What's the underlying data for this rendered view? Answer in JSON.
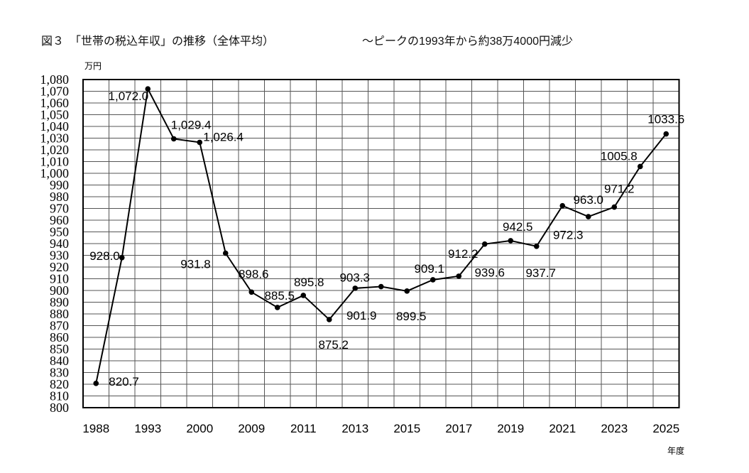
{
  "chart_data": {
    "type": "line",
    "title": "図３　「世帯の税込年収」の推移（全体平均）",
    "subtitle": "～ピークの1993年から約38万4000円減少",
    "ylabel": "万円",
    "xlabel": "年度",
    "ylim": [
      800,
      1080
    ],
    "ytick_step": 10,
    "ytick_labels": [
      "800",
      "810",
      "820",
      "830",
      "840",
      "850",
      "860",
      "870",
      "880",
      "890",
      "900",
      "910",
      "920",
      "930",
      "940",
      "950",
      "960",
      "970",
      "980",
      "990",
      "1,000",
      "1,010",
      "1,020",
      "1,030",
      "1,040",
      "1,050",
      "1,060",
      "1,070",
      "1,080"
    ],
    "grid": true,
    "categories": [
      "1988",
      "",
      "1993",
      "",
      "2000",
      "",
      "2009",
      "",
      "2011",
      "",
      "2013",
      "",
      "2015",
      "",
      "2017",
      "",
      "2019",
      "",
      "2021",
      "",
      "2023",
      "",
      "2025"
    ],
    "series": [
      {
        "values": [
          820.7,
          928.0,
          1072.0,
          1029.4,
          1026.4,
          931.8,
          898.6,
          885.5,
          895.8,
          875.2,
          901.9,
          903.3,
          899.5,
          909.1,
          912.2,
          939.6,
          942.5,
          937.7,
          972.3,
          963.0,
          971.2,
          1005.8,
          1033.6
        ],
        "labels": [
          "820.7",
          "928.0",
          "1,072.0",
          "1,029.4",
          "1,026.4",
          "931.8",
          "898.6",
          "885.5",
          "895.8",
          "875.2",
          "901.9",
          "903.3",
          "899.5",
          "909.1",
          "912.2",
          "939.6",
          "942.5",
          "937.7",
          "972.3",
          "963.0",
          "971.2",
          "1005.8",
          "1033.6"
        ],
        "color": "#000000"
      }
    ]
  }
}
